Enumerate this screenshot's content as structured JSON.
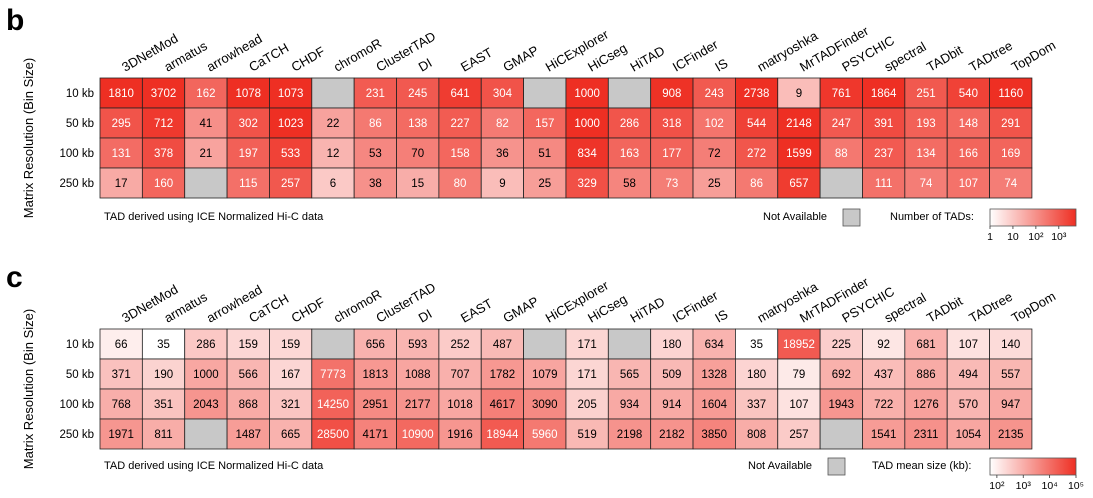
{
  "chart_data": [
    {
      "type": "heatmap",
      "panel_label": "b",
      "ylabel": "Matrix Resolution (Bin Size)",
      "columns": [
        "3DNetMod",
        "armatus",
        "arrowhead",
        "CaTCH",
        "CHDF",
        "chromoR",
        "ClusterTAD",
        "DI",
        "EAST",
        "GMAP",
        "HiCExplorer",
        "HiCseg",
        "HiTAD",
        "ICFinder",
        "IS",
        "matryoshka",
        "MrTADFinder",
        "PSYCHIC",
        "spectral",
        "TADbit",
        "TADtree",
        "TopDom"
      ],
      "rows": [
        "10 kb",
        "50 kb",
        "100 kb",
        "250 kb"
      ],
      "values": [
        [
          1810,
          3702,
          162,
          1078,
          1073,
          null,
          231,
          245,
          641,
          304,
          null,
          1000,
          null,
          908,
          243,
          2738,
          9,
          761,
          1864,
          251,
          540,
          1160
        ],
        [
          295,
          712,
          41,
          302,
          1023,
          22,
          86,
          138,
          227,
          82,
          157,
          1000,
          286,
          318,
          102,
          544,
          2148,
          247,
          391,
          193,
          148,
          291
        ],
        [
          131,
          378,
          21,
          197,
          533,
          12,
          53,
          70,
          158,
          36,
          51,
          834,
          163,
          177,
          72,
          272,
          1599,
          88,
          237,
          134,
          166,
          169
        ],
        [
          17,
          160,
          null,
          115,
          257,
          6,
          38,
          15,
          80,
          9,
          25,
          329,
          58,
          73,
          25,
          86,
          657,
          null,
          111,
          74,
          107,
          74
        ]
      ],
      "color_scale": "log",
      "color_range": [
        1,
        1000
      ],
      "colors": {
        "low": "#ffffff",
        "high": "#ee2f23",
        "missing": "#c8c8c8"
      },
      "footnote": "TAD derived using ICE Normalized Hi-C data",
      "missing_label": "Not Available",
      "legend_title": "Number of TADs:",
      "legend_ticks": [
        "1",
        "10",
        "10²",
        "10³"
      ]
    },
    {
      "type": "heatmap",
      "panel_label": "c",
      "ylabel": "Matrix Resolution (Bin Size)",
      "columns": [
        "3DNetMod",
        "armatus",
        "arrowhead",
        "CaTCH",
        "CHDF",
        "chromoR",
        "ClusterTAD",
        "DI",
        "EAST",
        "GMAP",
        "HiCExplorer",
        "HiCseg",
        "HiTAD",
        "ICFinder",
        "IS",
        "matryoshka",
        "MrTADFinder",
        "PSYCHIC",
        "spectral",
        "TADbit",
        "TADtree",
        "TopDom"
      ],
      "rows": [
        "10 kb",
        "50 kb",
        "100 kb",
        "250 kb"
      ],
      "values": [
        [
          66,
          35,
          286,
          159,
          159,
          null,
          656,
          593,
          252,
          487,
          null,
          171,
          null,
          180,
          634,
          35,
          18952,
          225,
          92,
          681,
          107,
          140
        ],
        [
          371,
          190,
          1000,
          566,
          167,
          7773,
          1813,
          1088,
          707,
          1782,
          1079,
          171,
          565,
          509,
          1328,
          180,
          79,
          692,
          437,
          886,
          494,
          557
        ],
        [
          768,
          351,
          2043,
          868,
          321,
          14250,
          2951,
          2177,
          1018,
          4617,
          3090,
          205,
          934,
          914,
          1604,
          337,
          107,
          1943,
          722,
          1276,
          570,
          947
        ],
        [
          1971,
          811,
          null,
          1487,
          665,
          28500,
          4171,
          10900,
          1916,
          18944,
          5960,
          519,
          2198,
          2182,
          3850,
          808,
          257,
          null,
          1541,
          2311,
          1054,
          2135
        ]
      ],
      "color_scale": "log",
      "color_range": [
        35,
        100000
      ],
      "colors": {
        "low": "#ffffff",
        "high": "#ee2f23",
        "missing": "#c8c8c8"
      },
      "footnote": "TAD derived using ICE Normalized Hi-C data",
      "missing_label": "Not Available",
      "legend_title": "TAD mean size (kb):",
      "legend_ticks": [
        "10²",
        "10³",
        "10⁴",
        "10⁵"
      ]
    }
  ]
}
